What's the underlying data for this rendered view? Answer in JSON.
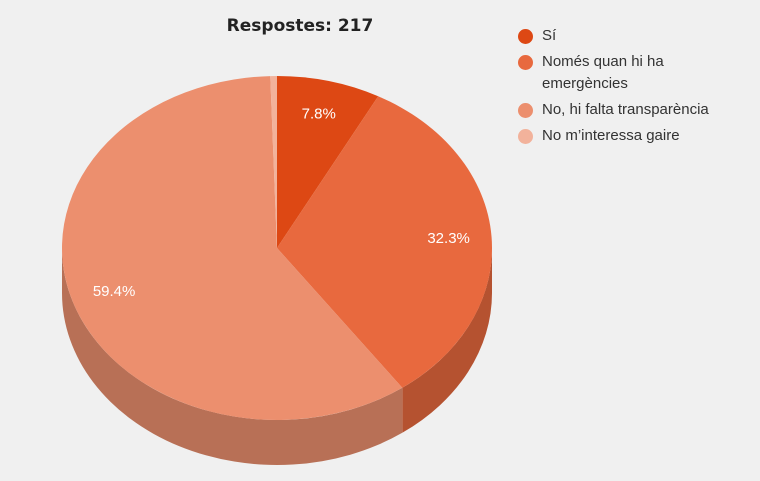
{
  "chart_data": {
    "type": "pie3d",
    "title": "Respostes: 217",
    "categories": [
      "Sí",
      "Només quan hi ha emergències",
      "No, hi falta transparència",
      "No m’interessa gaire"
    ],
    "values": [
      7.8,
      32.3,
      59.4,
      0.5
    ],
    "value_labels": [
      "7.8%",
      "32.3%",
      "59.4%",
      null
    ],
    "colors": [
      "#dd4814",
      "#e8693e",
      "#ec8f6e",
      "#f2b29b"
    ],
    "legend": "right"
  }
}
